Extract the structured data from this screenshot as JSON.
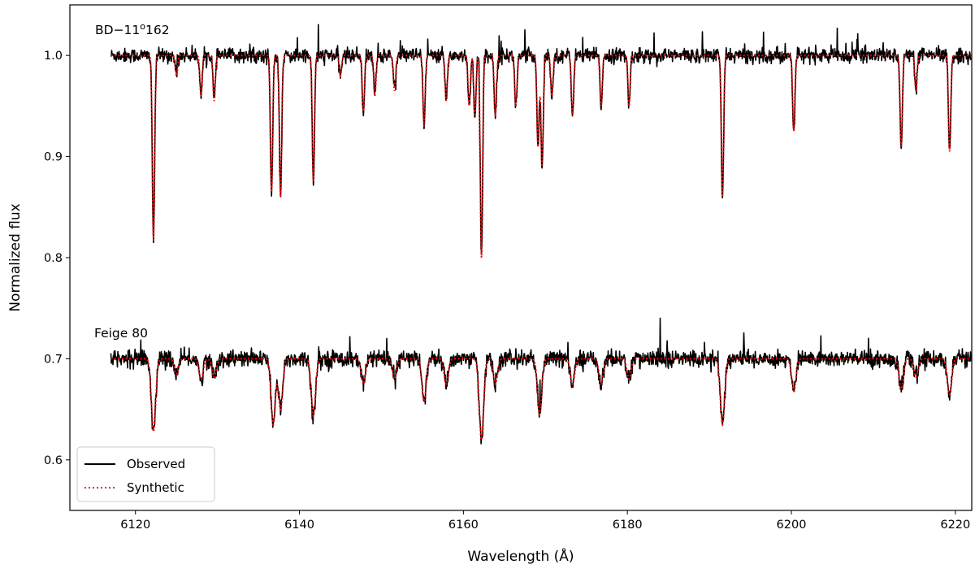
{
  "chart_data": {
    "type": "line",
    "title": "",
    "xlabel": "Wavelength (Å)",
    "ylabel": "Normalized flux",
    "xlim": [
      6112,
      6222
    ],
    "ylim": [
      0.55,
      1.05
    ],
    "xticks": [
      6120,
      6140,
      6160,
      6180,
      6200,
      6220
    ],
    "yticks": [
      0.6,
      0.7,
      0.8,
      0.9,
      1.0
    ],
    "ytick_labels": [
      "0.6",
      "0.7",
      "0.8",
      "0.9",
      "1.0"
    ],
    "grid": false,
    "legend_position": "lower-left",
    "legend": [
      {
        "label": "Observed",
        "style": "solid",
        "color": "#000000"
      },
      {
        "label": "Synthetic",
        "style": "dotted",
        "color": "#ff0000"
      }
    ],
    "stars": [
      {
        "label_main": "BD−11",
        "label_sup": "o",
        "label_tail": "162",
        "continuum": 1.0,
        "x_start": 6117,
        "x_end": 6222,
        "lines": [
          {
            "x": 6122.2,
            "depth": 0.183
          },
          {
            "x": 6125.0,
            "depth": 0.02
          },
          {
            "x": 6128.0,
            "depth": 0.04
          },
          {
            "x": 6129.6,
            "depth": 0.045
          },
          {
            "x": 6136.6,
            "depth": 0.135
          },
          {
            "x": 6137.7,
            "depth": 0.14
          },
          {
            "x": 6141.7,
            "depth": 0.125
          },
          {
            "x": 6145.0,
            "depth": 0.02
          },
          {
            "x": 6147.8,
            "depth": 0.055
          },
          {
            "x": 6149.2,
            "depth": 0.04
          },
          {
            "x": 6151.6,
            "depth": 0.035
          },
          {
            "x": 6155.2,
            "depth": 0.07
          },
          {
            "x": 6157.9,
            "depth": 0.045
          },
          {
            "x": 6160.7,
            "depth": 0.05
          },
          {
            "x": 6161.4,
            "depth": 0.06
          },
          {
            "x": 6162.2,
            "depth": 0.2
          },
          {
            "x": 6163.9,
            "depth": 0.06
          },
          {
            "x": 6166.4,
            "depth": 0.05
          },
          {
            "x": 6169.1,
            "depth": 0.09
          },
          {
            "x": 6169.6,
            "depth": 0.11
          },
          {
            "x": 6170.8,
            "depth": 0.04
          },
          {
            "x": 6173.3,
            "depth": 0.06
          },
          {
            "x": 6176.8,
            "depth": 0.05
          },
          {
            "x": 6180.2,
            "depth": 0.05
          },
          {
            "x": 6191.6,
            "depth": 0.14
          },
          {
            "x": 6200.3,
            "depth": 0.075
          },
          {
            "x": 6213.4,
            "depth": 0.09
          },
          {
            "x": 6215.2,
            "depth": 0.035
          },
          {
            "x": 6219.3,
            "depth": 0.095
          }
        ]
      },
      {
        "label_main": "Feige 80",
        "label_sup": "",
        "label_tail": "",
        "continuum": 0.7,
        "x_start": 6117,
        "x_end": 6222,
        "lines": [
          {
            "x": 6122.2,
            "depth": 0.072
          },
          {
            "x": 6125.0,
            "depth": 0.015
          },
          {
            "x": 6128.0,
            "depth": 0.02
          },
          {
            "x": 6129.6,
            "depth": 0.018
          },
          {
            "x": 6136.8,
            "depth": 0.065
          },
          {
            "x": 6137.7,
            "depth": 0.05
          },
          {
            "x": 6141.7,
            "depth": 0.057
          },
          {
            "x": 6147.8,
            "depth": 0.025
          },
          {
            "x": 6151.6,
            "depth": 0.02
          },
          {
            "x": 6155.2,
            "depth": 0.042
          },
          {
            "x": 6157.9,
            "depth": 0.025
          },
          {
            "x": 6162.2,
            "depth": 0.08
          },
          {
            "x": 6163.9,
            "depth": 0.025
          },
          {
            "x": 6169.3,
            "depth": 0.055
          },
          {
            "x": 6173.3,
            "depth": 0.025
          },
          {
            "x": 6176.8,
            "depth": 0.025
          },
          {
            "x": 6180.2,
            "depth": 0.02
          },
          {
            "x": 6191.6,
            "depth": 0.065
          },
          {
            "x": 6200.3,
            "depth": 0.032
          },
          {
            "x": 6213.4,
            "depth": 0.03
          },
          {
            "x": 6215.2,
            "depth": 0.018
          },
          {
            "x": 6219.3,
            "depth": 0.035
          }
        ]
      }
    ]
  }
}
